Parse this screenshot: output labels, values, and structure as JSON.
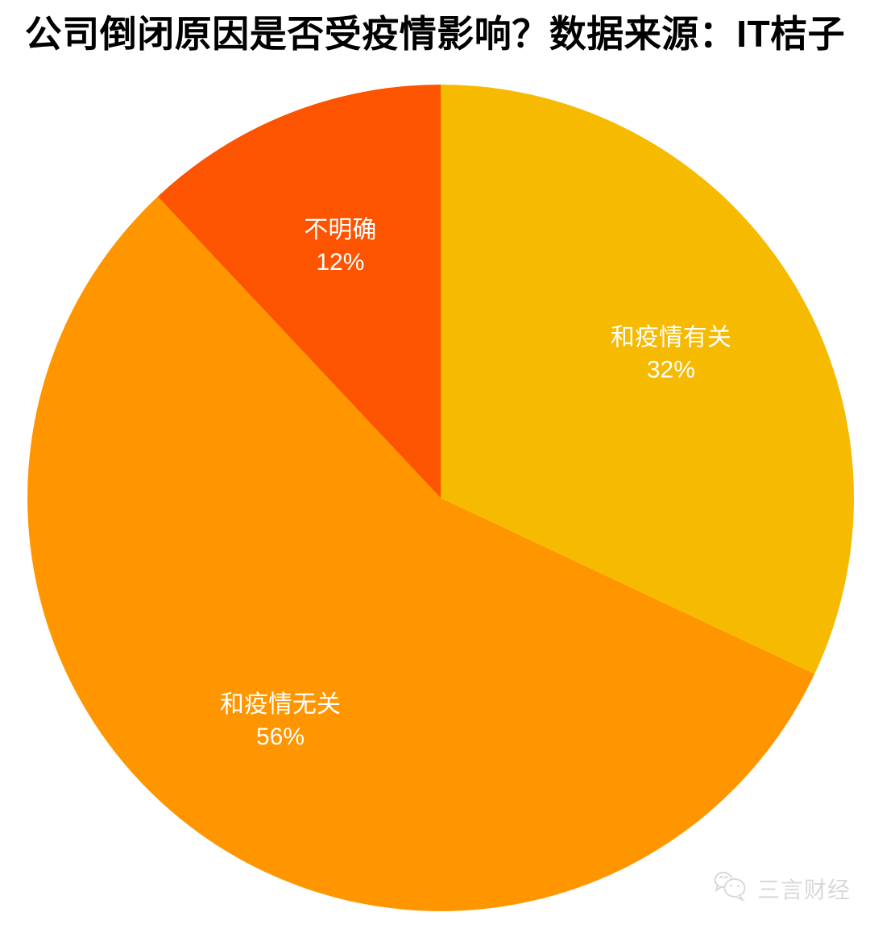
{
  "title": "公司倒闭原因是否受疫情影响？数据来源：IT桔子",
  "watermark": {
    "icon": "wechat-icon",
    "text": "三言财经"
  },
  "chart_data": {
    "type": "pie",
    "title": "公司倒闭原因是否受疫情影响？数据来源：IT桔子",
    "unit": "%",
    "start_angle_deg_from_top": 0,
    "direction": "clockwise",
    "legend_position": "none",
    "label_style": {
      "color": "#FFFFFF",
      "position": "inside"
    },
    "slices": [
      {
        "label": "和疫情有关",
        "value": 32,
        "value_label": "32%",
        "color": "#F6BA00"
      },
      {
        "label": "和疫情无关",
        "value": 56,
        "value_label": "56%",
        "color": "#FF9600"
      },
      {
        "label": "不明确",
        "value": 12,
        "value_label": "12%",
        "color": "#FC5400"
      }
    ]
  }
}
